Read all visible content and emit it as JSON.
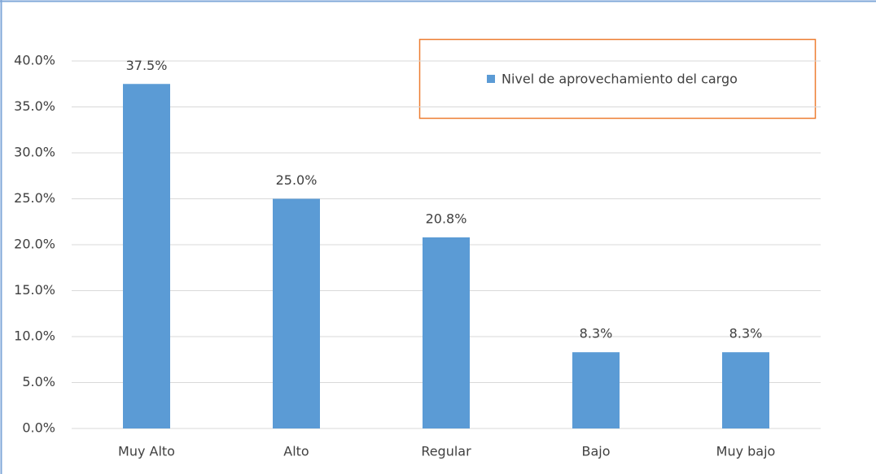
{
  "chart_data": {
    "type": "bar",
    "categories": [
      "Muy Alto",
      "Alto",
      "Regular",
      "Bajo",
      "Muy bajo"
    ],
    "values": [
      37.5,
      25.0,
      20.8,
      8.3,
      8.3
    ],
    "value_labels": [
      "37.5%",
      "25.0%",
      "20.8%",
      "8.3%",
      "8.3%"
    ],
    "series_name": "Nivel de aprovechamiento del cargo",
    "color": "#5b9bd5",
    "ylim": [
      0,
      40
    ],
    "yticks": [
      {
        "value": 0,
        "label": "0.0%"
      },
      {
        "value": 5,
        "label": "5.0%"
      },
      {
        "value": 10,
        "label": "10.0%"
      },
      {
        "value": 15,
        "label": "15.0%"
      },
      {
        "value": 20,
        "label": "20.0%"
      },
      {
        "value": 25,
        "label": "25.0%"
      },
      {
        "value": 30,
        "label": "30.0%"
      },
      {
        "value": 35,
        "label": "35.0%"
      },
      {
        "value": 40,
        "label": "40.0%"
      }
    ],
    "grid": true,
    "legend": "top-right"
  }
}
